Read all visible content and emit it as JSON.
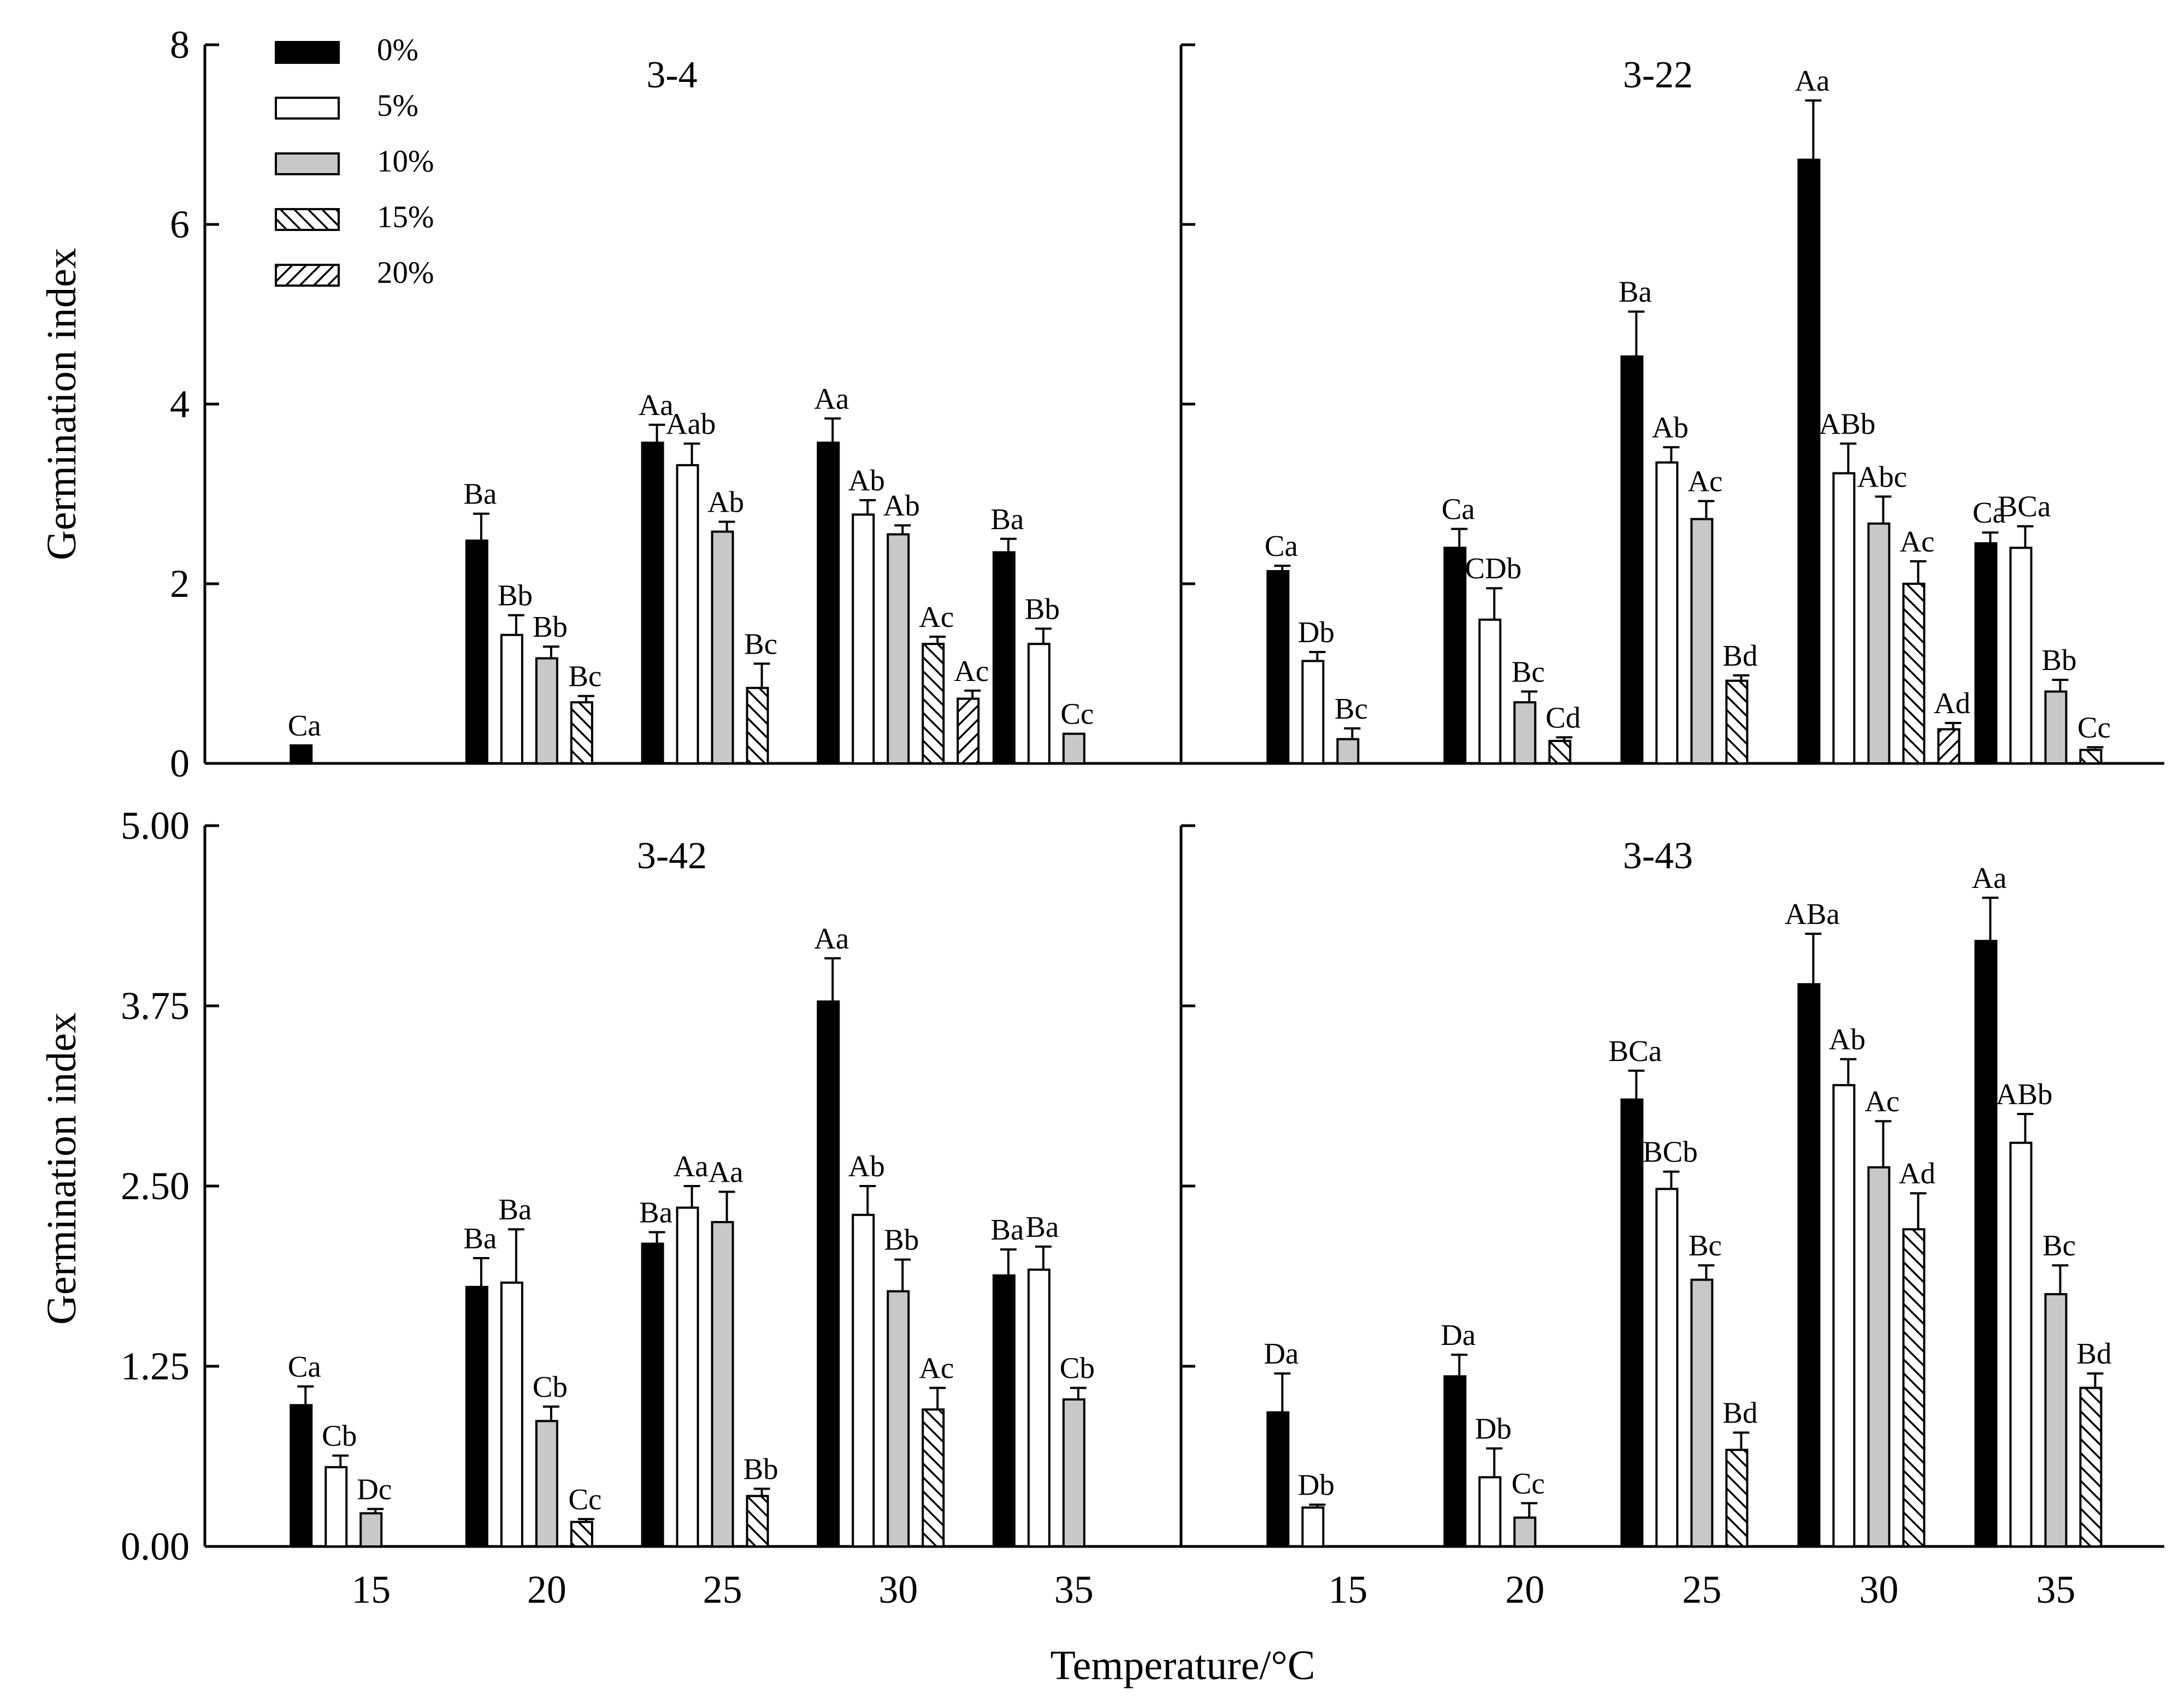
{
  "figure": {
    "xlabel": "Temperature/°C",
    "ylabel": "Germination index"
  },
  "legend": {
    "items": [
      {
        "label": "0%",
        "pattern": "solid"
      },
      {
        "label": "5%",
        "pattern": "open"
      },
      {
        "label": "10%",
        "pattern": "gray"
      },
      {
        "label": "15%",
        "pattern": "hatch-forward"
      },
      {
        "label": "20%",
        "pattern": "hatch-back"
      }
    ]
  },
  "colors": {
    "solid": "#000000",
    "open": "#ffffff",
    "gray": "#c8c8c8",
    "stroke": "#000000"
  },
  "chart_data": [
    {
      "type": "bar",
      "title": "3-4",
      "categories": [
        "15",
        "20",
        "25",
        "30",
        "35"
      ],
      "ylim": [
        0,
        8
      ],
      "yticks": [
        "0",
        "2",
        "4",
        "6",
        "8"
      ],
      "show_y_labels": true,
      "show_x_labels": false,
      "series": [
        {
          "name": "0%",
          "values": [
            0.2,
            2.48,
            3.57,
            3.57,
            2.35
          ],
          "errors": [
            0,
            0.3,
            0.2,
            0.27,
            0.15
          ],
          "labels": [
            "Ca",
            "Ba",
            "Aa",
            "Aa",
            "Ba"
          ]
        },
        {
          "name": "5%",
          "values": [
            null,
            1.43,
            3.32,
            2.77,
            1.33
          ],
          "errors": [
            0,
            0.22,
            0.24,
            0.16,
            0.17
          ],
          "labels": [
            "",
            "Bb",
            "Aab",
            "Ab",
            "Bb"
          ]
        },
        {
          "name": "10%",
          "values": [
            null,
            1.17,
            2.58,
            2.55,
            0.33
          ],
          "errors": [
            0,
            0.13,
            0.11,
            0.1,
            0
          ],
          "labels": [
            "",
            "Bb",
            "Ab",
            "Ab",
            "Cc"
          ]
        },
        {
          "name": "15%",
          "values": [
            null,
            0.68,
            0.84,
            1.33,
            null
          ],
          "errors": [
            0,
            0.07,
            0.27,
            0.08,
            0
          ],
          "labels": [
            "",
            "Bc",
            "Bc",
            "Ac",
            ""
          ]
        },
        {
          "name": "20%",
          "values": [
            null,
            null,
            null,
            0.72,
            null
          ],
          "errors": [
            0,
            0,
            0,
            0.09,
            0
          ],
          "labels": [
            "",
            "",
            "",
            "Ac",
            ""
          ]
        }
      ]
    },
    {
      "type": "bar",
      "title": "3-22",
      "categories": [
        "15",
        "20",
        "25",
        "30",
        "35"
      ],
      "ylim": [
        0,
        8
      ],
      "yticks": [
        "0",
        "2",
        "4",
        "6",
        "8"
      ],
      "show_y_labels": false,
      "show_x_labels": false,
      "series": [
        {
          "name": "0%",
          "values": [
            2.14,
            2.4,
            4.53,
            6.72,
            2.45
          ],
          "errors": [
            0.06,
            0.21,
            0.5,
            0.66,
            0.12
          ],
          "labels": [
            "Ca",
            "Ca",
            "Ba",
            "Aa",
            "Ca"
          ]
        },
        {
          "name": "5%",
          "values": [
            1.14,
            1.6,
            3.35,
            3.23,
            2.4
          ],
          "errors": [
            0.1,
            0.35,
            0.17,
            0.33,
            0.24
          ],
          "labels": [
            "Db",
            "CDb",
            "Ab",
            "ABb",
            "BCa"
          ]
        },
        {
          "name": "10%",
          "values": [
            0.27,
            0.68,
            2.72,
            2.67,
            0.8
          ],
          "errors": [
            0.12,
            0.12,
            0.2,
            0.3,
            0.13
          ],
          "labels": [
            "Bc",
            "Bc",
            "Ac",
            "Abc",
            "Bb"
          ]
        },
        {
          "name": "15%",
          "values": [
            null,
            0.25,
            0.92,
            2.0,
            0.15
          ],
          "errors": [
            0,
            0.04,
            0.06,
            0.25,
            0.03
          ],
          "labels": [
            "",
            "Cd",
            "Bd",
            "Ac",
            "Cc"
          ]
        },
        {
          "name": "20%",
          "values": [
            null,
            null,
            null,
            0.38,
            null
          ],
          "errors": [
            0,
            0,
            0,
            0.07,
            0
          ],
          "labels": [
            "",
            "",
            "",
            "Ad",
            ""
          ]
        }
      ]
    },
    {
      "type": "bar",
      "title": "3-42",
      "categories": [
        "15",
        "20",
        "25",
        "30",
        "35"
      ],
      "ylim": [
        0,
        5
      ],
      "yticks": [
        "0.00",
        "1.25",
        "2.50",
        "3.75",
        "5.00"
      ],
      "show_y_labels": true,
      "show_x_labels": true,
      "series": [
        {
          "name": "0%",
          "values": [
            0.98,
            1.8,
            2.1,
            3.78,
            1.88
          ],
          "errors": [
            0.13,
            0.2,
            0.08,
            0.3,
            0.18
          ],
          "labels": [
            "Ca",
            "Ba",
            "Ba",
            "Aa",
            "Ba"
          ]
        },
        {
          "name": "5%",
          "values": [
            0.55,
            1.83,
            2.35,
            2.3,
            1.92
          ],
          "errors": [
            0.08,
            0.37,
            0.15,
            0.2,
            0.16
          ],
          "labels": [
            "Cb",
            "Ba",
            "Aa",
            "Ab",
            "Ba"
          ]
        },
        {
          "name": "10%",
          "values": [
            0.23,
            0.87,
            2.25,
            1.77,
            1.02
          ],
          "errors": [
            0.03,
            0.1,
            0.21,
            0.22,
            0.08
          ],
          "labels": [
            "Dc",
            "Cb",
            "Aa",
            "Bb",
            "Cb"
          ]
        },
        {
          "name": "15%",
          "values": [
            null,
            0.17,
            0.35,
            0.95,
            null
          ],
          "errors": [
            0,
            0.02,
            0.05,
            0.15,
            0
          ],
          "labels": [
            "",
            "Cc",
            "Bb",
            "Ac",
            ""
          ]
        },
        {
          "name": "20%",
          "values": [
            null,
            null,
            null,
            null,
            null
          ],
          "errors": [
            0,
            0,
            0,
            0,
            0
          ],
          "labels": [
            "",
            "",
            "",
            "",
            ""
          ]
        }
      ]
    },
    {
      "type": "bar",
      "title": "3-43",
      "categories": [
        "15",
        "20",
        "25",
        "30",
        "35"
      ],
      "ylim": [
        0,
        5
      ],
      "yticks": [
        "0.00",
        "1.25",
        "2.50",
        "3.75",
        "5.00"
      ],
      "show_y_labels": false,
      "show_x_labels": true,
      "series": [
        {
          "name": "0%",
          "values": [
            0.93,
            1.18,
            3.1,
            3.9,
            4.2
          ],
          "errors": [
            0.27,
            0.15,
            0.2,
            0.35,
            0.3
          ],
          "labels": [
            "Da",
            "Da",
            "BCa",
            "ABa",
            "Aa"
          ]
        },
        {
          "name": "5%",
          "values": [
            0.27,
            0.48,
            2.48,
            3.2,
            2.8
          ],
          "errors": [
            0.02,
            0.2,
            0.12,
            0.18,
            0.2
          ],
          "labels": [
            "Db",
            "Db",
            "BCb",
            "Ab",
            "ABb"
          ]
        },
        {
          "name": "10%",
          "values": [
            null,
            0.2,
            1.85,
            2.63,
            1.75
          ],
          "errors": [
            0,
            0.1,
            0.1,
            0.32,
            0.2
          ],
          "labels": [
            "",
            "Cc",
            "Bc",
            "Ac",
            "Bc"
          ]
        },
        {
          "name": "15%",
          "values": [
            null,
            null,
            0.67,
            2.2,
            1.1
          ],
          "errors": [
            0,
            0,
            0.12,
            0.25,
            0.1
          ],
          "labels": [
            "",
            "",
            "Bd",
            "Ad",
            "Bd"
          ]
        },
        {
          "name": "20%",
          "values": [
            null,
            null,
            null,
            null,
            null
          ],
          "errors": [
            0,
            0,
            0,
            0,
            0
          ],
          "labels": [
            "",
            "",
            "",
            "",
            ""
          ]
        }
      ]
    }
  ]
}
